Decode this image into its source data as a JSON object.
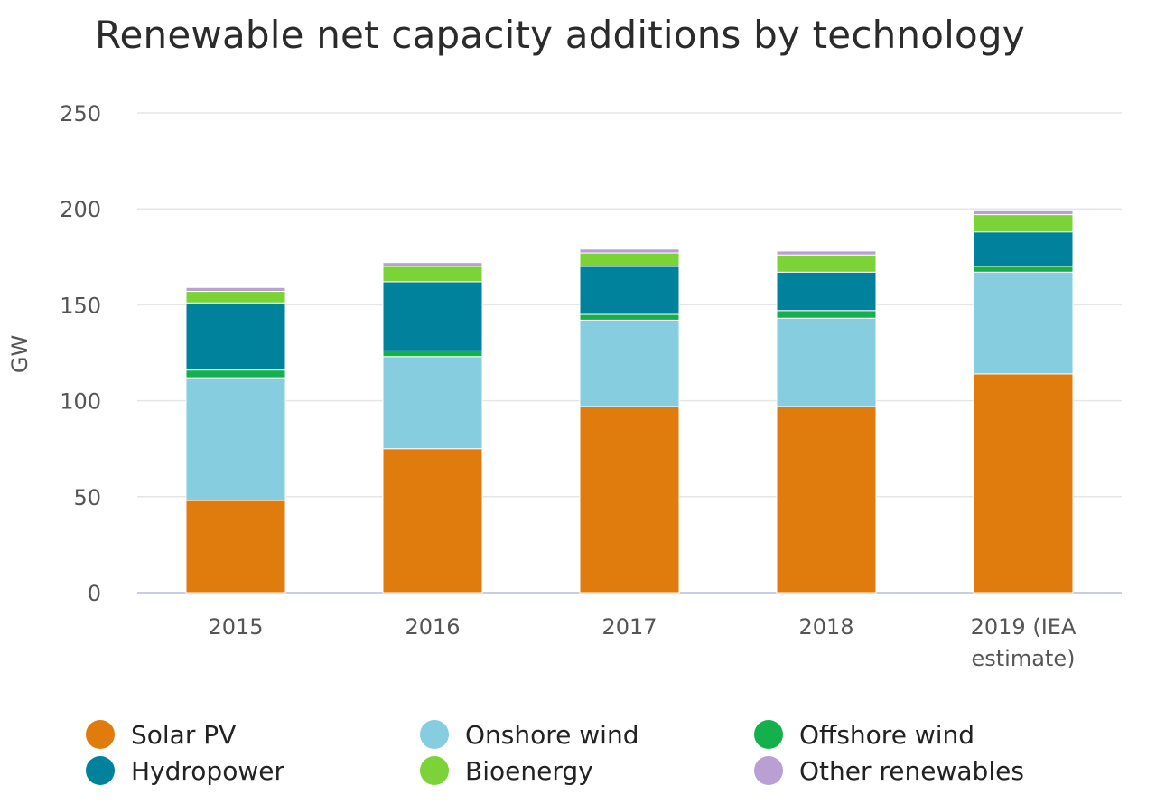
{
  "chart_data": {
    "type": "bar",
    "stacked": true,
    "title": "Renewable net capacity additions by technology",
    "xlabel": "",
    "ylabel": "GW",
    "ylim": [
      0,
      250
    ],
    "yticks": [
      0,
      50,
      100,
      150,
      200,
      250
    ],
    "categories": [
      "2015",
      "2016",
      "2017",
      "2018",
      "2019 (IEA estimate)"
    ],
    "category_lines": [
      [
        "2015"
      ],
      [
        "2016"
      ],
      [
        "2017"
      ],
      [
        "2018"
      ],
      [
        "2019 (IEA",
        "estimate)"
      ]
    ],
    "grid": true,
    "legend_position": "bottom",
    "series": [
      {
        "name": "Solar PV",
        "color": "#e07b0e",
        "values": [
          48,
          75,
          97,
          97,
          114
        ]
      },
      {
        "name": "Onshore wind",
        "color": "#86cde0",
        "values": [
          64,
          48,
          45,
          46,
          53
        ]
      },
      {
        "name": "Offshore wind",
        "color": "#13b04b",
        "values": [
          4,
          3,
          3,
          4,
          3
        ]
      },
      {
        "name": "Hydropower",
        "color": "#00829c",
        "values": [
          35,
          36,
          25,
          20,
          18
        ]
      },
      {
        "name": "Bioenergy",
        "color": "#7cd338",
        "values": [
          6,
          8,
          7,
          9,
          9
        ]
      },
      {
        "name": "Other renewables",
        "color": "#b99fd4",
        "values": [
          2,
          2,
          2,
          2,
          2
        ]
      }
    ]
  }
}
